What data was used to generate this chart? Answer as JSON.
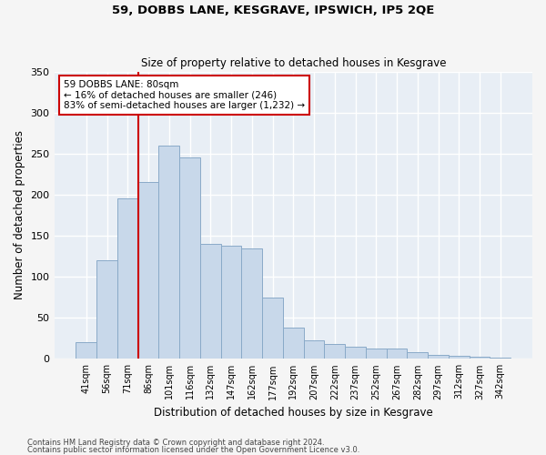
{
  "title": "59, DOBBS LANE, KESGRAVE, IPSWICH, IP5 2QE",
  "subtitle": "Size of property relative to detached houses in Kesgrave",
  "xlabel": "Distribution of detached houses by size in Kesgrave",
  "ylabel": "Number of detached properties",
  "categories": [
    "41sqm",
    "56sqm",
    "71sqm",
    "86sqm",
    "101sqm",
    "116sqm",
    "132sqm",
    "147sqm",
    "162sqm",
    "177sqm",
    "192sqm",
    "207sqm",
    "222sqm",
    "237sqm",
    "252sqm",
    "267sqm",
    "282sqm",
    "297sqm",
    "312sqm",
    "327sqm",
    "342sqm"
  ],
  "values": [
    20,
    120,
    195,
    215,
    260,
    245,
    140,
    138,
    135,
    75,
    38,
    22,
    18,
    15,
    12,
    12,
    8,
    5,
    4,
    3,
    2
  ],
  "bar_color": "#c8d8ea",
  "bar_edge_color": "#8aaac8",
  "bg_color": "#e8eef5",
  "grid_color": "#ffffff",
  "property_line_x": 2.5,
  "property_line_color": "#cc0000",
  "annotation_text": "59 DOBBS LANE: 80sqm\n← 16% of detached houses are smaller (246)\n83% of semi-detached houses are larger (1,232) →",
  "annotation_box_color": "#cc0000",
  "footer_line1": "Contains HM Land Registry data © Crown copyright and database right 2024.",
  "footer_line2": "Contains public sector information licensed under the Open Government Licence v3.0.",
  "ylim": [
    0,
    350
  ],
  "yticks": [
    0,
    50,
    100,
    150,
    200,
    250,
    300,
    350
  ],
  "fig_facecolor": "#f5f5f5"
}
